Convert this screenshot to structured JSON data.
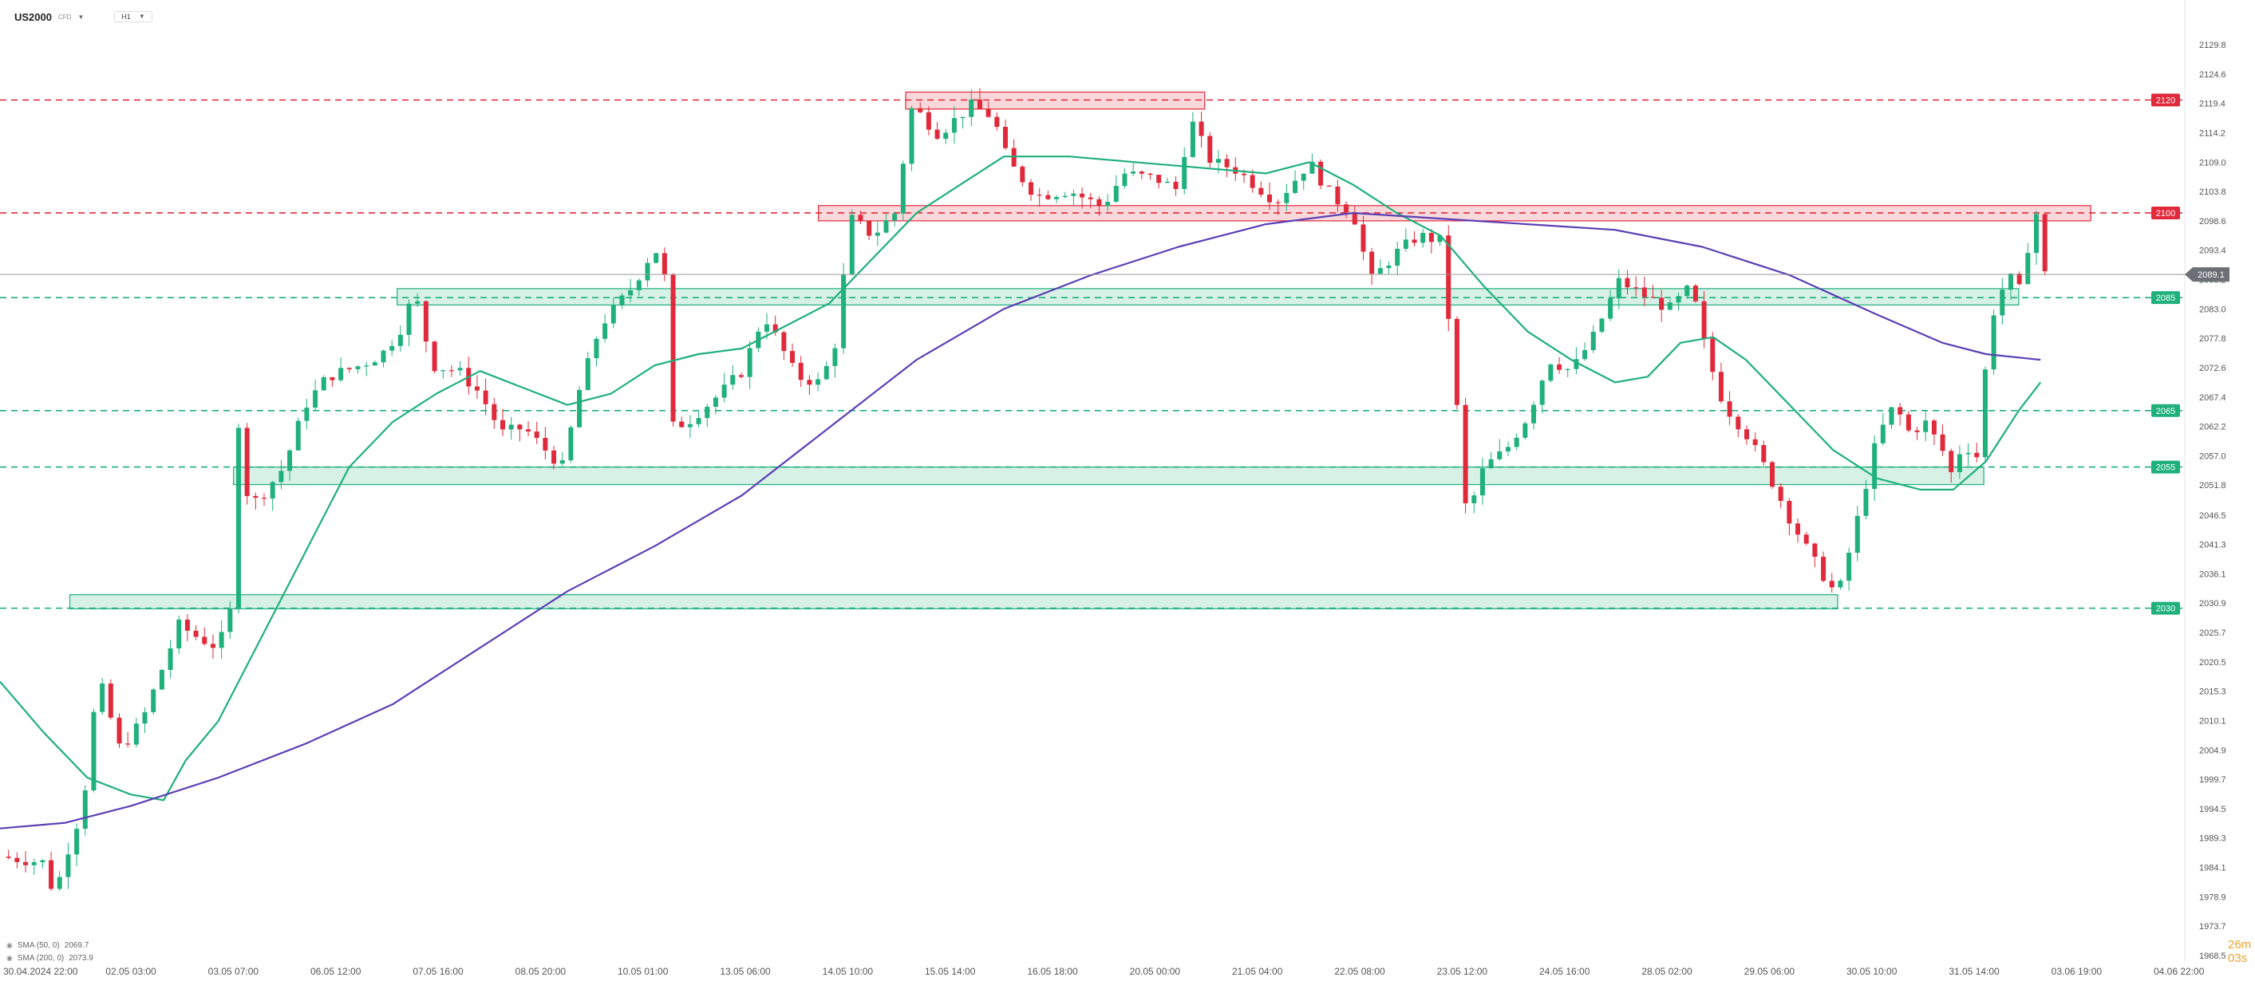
{
  "header": {
    "symbol": "US2000",
    "instrument_type": "CFD",
    "symbol_menu_icon": "chevron-down-icon",
    "timeframe": "H1",
    "timeframe_menu_icon": "chevron-down-icon"
  },
  "countdown": "26m 03s",
  "legend": [
    {
      "icon": "visibility-eye-icon",
      "label": "SMA (50, 0)",
      "value": "2069.7",
      "color": "#1fb07c"
    },
    {
      "icon": "visibility-eye-icon",
      "label": "SMA (200, 0)",
      "value": "2073.9",
      "color": "#5b3fb5"
    }
  ],
  "colors": {
    "bull": "#1fb07c",
    "bear": "#e0293a",
    "sma50": "#1fb07c",
    "sma200": "#5b3fb5",
    "resistance": "#e0293a",
    "support": "#1fb07c"
  },
  "chart_data": {
    "type": "candlestick",
    "symbol": "US2000",
    "timeframe": "H1",
    "y_axis": {
      "ticks": [
        2129.8,
        2124.6,
        2119.4,
        2114.2,
        2109.0,
        2103.8,
        2098.6,
        2093.4,
        2088.2,
        2083.0,
        2077.8,
        2072.6,
        2067.4,
        2062.2,
        2057.0,
        2051.8,
        2046.5,
        2041.3,
        2036.1,
        2030.9,
        2025.7,
        2020.5,
        2015.3,
        2010.1,
        2004.9,
        1999.7,
        1994.5,
        1989.3,
        1984.1,
        1978.9,
        1973.7,
        1968.5
      ],
      "range": [
        1968.5,
        2129.8
      ],
      "position": "right"
    },
    "x_axis": {
      "labels": [
        "30.04.2024 22:00",
        "02.05 03:00",
        "03.05 07:00",
        "06.05 12:00",
        "07.05 16:00",
        "08.05 20:00",
        "10.05 01:00",
        "13.05 06:00",
        "14.05 10:00",
        "15.05 14:00",
        "16.05 18:00",
        "20.05 00:00",
        "21.05 04:00",
        "22.05 08:00",
        "23.05 12:00",
        "24.05 16:00",
        "28.05 02:00",
        "29.05 06:00",
        "30.05 10:00",
        "31.05 14:00",
        "03.06 19:00",
        "04.06 22:00"
      ]
    },
    "current_price": 2089.1,
    "price_levels": [
      {
        "label": "2120",
        "value": 2120,
        "kind": "resistance"
      },
      {
        "label": "2100",
        "value": 2100,
        "kind": "resistance"
      },
      {
        "label": "2085",
        "value": 2085,
        "kind": "support"
      },
      {
        "label": "2065",
        "value": 2065,
        "kind": "support"
      },
      {
        "label": "2055",
        "value": 2055,
        "kind": "support"
      },
      {
        "label": "2030",
        "value": 2030,
        "kind": "support"
      }
    ],
    "zones": [
      {
        "kind": "resistance",
        "low": 2118.4,
        "high": 2121.4,
        "from": 0.415,
        "to": 0.552
      },
      {
        "kind": "resistance",
        "low": 2098.6,
        "high": 2101.3,
        "from": 0.375,
        "to": 0.958
      },
      {
        "kind": "support",
        "low": 2083.7,
        "high": 2086.6,
        "from": 0.182,
        "to": 0.925
      },
      {
        "kind": "support",
        "low": 2051.9,
        "high": 2055.0,
        "from": 0.107,
        "to": 0.909
      },
      {
        "kind": "support",
        "low": 2029.9,
        "high": 2032.4,
        "from": 0.032,
        "to": 0.842
      }
    ],
    "price_path": [
      [
        0,
        1986
      ],
      [
        0.02,
        1985
      ],
      [
        0.025,
        1979
      ],
      [
        0.03,
        1986
      ],
      [
        0.038,
        1995
      ],
      [
        0.045,
        2018
      ],
      [
        0.055,
        2005
      ],
      [
        0.065,
        2010
      ],
      [
        0.075,
        2020
      ],
      [
        0.082,
        2027
      ],
      [
        0.09,
        2025
      ],
      [
        0.1,
        2023
      ],
      [
        0.106,
        2030
      ],
      [
        0.109,
        2064
      ],
      [
        0.114,
        2048
      ],
      [
        0.12,
        2050
      ],
      [
        0.13,
        2055
      ],
      [
        0.14,
        2066
      ],
      [
        0.15,
        2071
      ],
      [
        0.165,
        2073
      ],
      [
        0.175,
        2075
      ],
      [
        0.183,
        2079
      ],
      [
        0.19,
        2086
      ],
      [
        0.198,
        2073
      ],
      [
        0.21,
        2072
      ],
      [
        0.22,
        2068
      ],
      [
        0.23,
        2061
      ],
      [
        0.24,
        2062
      ],
      [
        0.25,
        2058
      ],
      [
        0.258,
        2055
      ],
      [
        0.265,
        2068
      ],
      [
        0.275,
        2080
      ],
      [
        0.29,
        2087
      ],
      [
        0.3,
        2094
      ],
      [
        0.305,
        2088
      ],
      [
        0.307,
        2062
      ],
      [
        0.315,
        2063
      ],
      [
        0.33,
        2068
      ],
      [
        0.34,
        2072
      ],
      [
        0.35,
        2082
      ],
      [
        0.357,
        2077
      ],
      [
        0.365,
        2071
      ],
      [
        0.375,
        2070
      ],
      [
        0.382,
        2075
      ],
      [
        0.39,
        2099
      ],
      [
        0.4,
        2096
      ],
      [
        0.41,
        2100
      ],
      [
        0.418,
        2119
      ],
      [
        0.43,
        2114
      ],
      [
        0.445,
        2119
      ],
      [
        0.455,
        2117
      ],
      [
        0.462,
        2109
      ],
      [
        0.475,
        2103
      ],
      [
        0.49,
        2104
      ],
      [
        0.505,
        2101
      ],
      [
        0.515,
        2107
      ],
      [
        0.53,
        2106
      ],
      [
        0.54,
        2104
      ],
      [
        0.545,
        2117
      ],
      [
        0.555,
        2109
      ],
      [
        0.565,
        2108
      ],
      [
        0.575,
        2105
      ],
      [
        0.585,
        2102
      ],
      [
        0.6,
        2109
      ],
      [
        0.61,
        2103
      ],
      [
        0.62,
        2100
      ],
      [
        0.628,
        2088
      ],
      [
        0.64,
        2093
      ],
      [
        0.65,
        2096
      ],
      [
        0.66,
        2095
      ],
      [
        0.665,
        2077
      ],
      [
        0.672,
        2046
      ],
      [
        0.68,
        2055
      ],
      [
        0.69,
        2058
      ],
      [
        0.7,
        2064
      ],
      [
        0.71,
        2074
      ],
      [
        0.72,
        2072
      ],
      [
        0.73,
        2078
      ],
      [
        0.742,
        2088
      ],
      [
        0.755,
        2085
      ],
      [
        0.765,
        2083
      ],
      [
        0.775,
        2087
      ],
      [
        0.782,
        2075
      ],
      [
        0.79,
        2066
      ],
      [
        0.8,
        2061
      ],
      [
        0.81,
        2054
      ],
      [
        0.82,
        2046
      ],
      [
        0.83,
        2039
      ],
      [
        0.842,
        2032
      ],
      [
        0.85,
        2044
      ],
      [
        0.86,
        2060
      ],
      [
        0.868,
        2066
      ],
      [
        0.875,
        2061
      ],
      [
        0.882,
        2063
      ],
      [
        0.89,
        2058
      ],
      [
        0.895,
        2053
      ],
      [
        0.9,
        2061
      ],
      [
        0.905,
        2054
      ],
      [
        0.912,
        2081
      ],
      [
        0.92,
        2089
      ],
      [
        0.926,
        2086
      ],
      [
        0.93,
        2096
      ],
      [
        0.934,
        2101
      ],
      [
        0.937,
        2089.1
      ]
    ],
    "sma50_path": [
      [
        0,
        2017
      ],
      [
        0.02,
        2008
      ],
      [
        0.04,
        2000
      ],
      [
        0.06,
        1997
      ],
      [
        0.075,
        1996
      ],
      [
        0.085,
        2003
      ],
      [
        0.1,
        2010
      ],
      [
        0.12,
        2025
      ],
      [
        0.14,
        2040
      ],
      [
        0.16,
        2055
      ],
      [
        0.18,
        2063
      ],
      [
        0.2,
        2068
      ],
      [
        0.22,
        2072
      ],
      [
        0.24,
        2069
      ],
      [
        0.26,
        2066
      ],
      [
        0.28,
        2068
      ],
      [
        0.3,
        2073
      ],
      [
        0.32,
        2075
      ],
      [
        0.34,
        2076
      ],
      [
        0.36,
        2080
      ],
      [
        0.38,
        2084
      ],
      [
        0.4,
        2092
      ],
      [
        0.42,
        2100
      ],
      [
        0.44,
        2105
      ],
      [
        0.46,
        2110
      ],
      [
        0.49,
        2110
      ],
      [
        0.52,
        2109
      ],
      [
        0.55,
        2108
      ],
      [
        0.58,
        2107
      ],
      [
        0.6,
        2109
      ],
      [
        0.62,
        2105
      ],
      [
        0.64,
        2100
      ],
      [
        0.66,
        2096
      ],
      [
        0.68,
        2087
      ],
      [
        0.7,
        2079
      ],
      [
        0.72,
        2074
      ],
      [
        0.74,
        2070
      ],
      [
        0.755,
        2071
      ],
      [
        0.77,
        2077
      ],
      [
        0.785,
        2078
      ],
      [
        0.8,
        2074
      ],
      [
        0.82,
        2066
      ],
      [
        0.84,
        2058
      ],
      [
        0.86,
        2053
      ],
      [
        0.88,
        2051
      ],
      [
        0.895,
        2051
      ],
      [
        0.91,
        2056
      ],
      [
        0.925,
        2065
      ],
      [
        0.935,
        2070
      ]
    ],
    "sma200_path": [
      [
        0,
        1991
      ],
      [
        0.03,
        1992
      ],
      [
        0.06,
        1995
      ],
      [
        0.1,
        2000
      ],
      [
        0.14,
        2006
      ],
      [
        0.18,
        2013
      ],
      [
        0.22,
        2023
      ],
      [
        0.26,
        2033
      ],
      [
        0.3,
        2041
      ],
      [
        0.34,
        2050
      ],
      [
        0.38,
        2062
      ],
      [
        0.42,
        2074
      ],
      [
        0.46,
        2083
      ],
      [
        0.5,
        2089
      ],
      [
        0.54,
        2094
      ],
      [
        0.58,
        2098
      ],
      [
        0.62,
        2100
      ],
      [
        0.66,
        2099
      ],
      [
        0.7,
        2098
      ],
      [
        0.74,
        2097
      ],
      [
        0.78,
        2094
      ],
      [
        0.82,
        2089
      ],
      [
        0.86,
        2082
      ],
      [
        0.89,
        2077
      ],
      [
        0.91,
        2075
      ],
      [
        0.935,
        2074
      ]
    ]
  }
}
